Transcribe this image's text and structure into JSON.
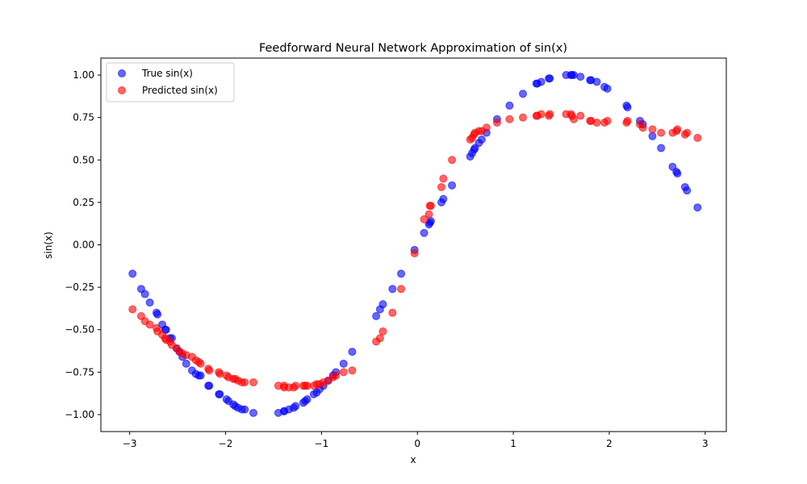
{
  "chart_data": {
    "type": "scatter",
    "title": "Feedforward Neural Network Approximation of sin(x)",
    "xlabel": "x",
    "ylabel": "sin(x)",
    "xlim": [
      -3.3,
      3.22
    ],
    "ylim": [
      -1.1,
      1.1
    ],
    "xticks": [
      -3,
      -2,
      -1,
      0,
      1,
      2,
      3
    ],
    "yticks": [
      -1.0,
      -0.75,
      -0.5,
      -0.25,
      0.0,
      0.25,
      0.5,
      0.75,
      1.0
    ],
    "xtick_labels": [
      "−3",
      "−2",
      "−1",
      "0",
      "1",
      "2",
      "3"
    ],
    "ytick_labels": [
      "−1.00",
      "−0.75",
      "−0.50",
      "−0.25",
      "0.00",
      "0.25",
      "0.50",
      "0.75",
      "1.00"
    ],
    "grid": false,
    "legend_position": "upper-left",
    "series": [
      {
        "name": "True sin(x)",
        "color": "#0000ff",
        "x": [
          -2.97,
          -2.88,
          -2.84,
          -2.79,
          -2.72,
          -2.71,
          -2.66,
          -2.63,
          -2.62,
          -2.58,
          -2.56,
          -2.51,
          -2.48,
          -2.45,
          -2.41,
          -2.35,
          -2.31,
          -2.28,
          -2.26,
          -2.18,
          -2.17,
          -2.07,
          -2.06,
          -1.99,
          -1.97,
          -1.92,
          -1.9,
          -1.87,
          -1.83,
          -1.8,
          -1.71,
          -1.45,
          -1.39,
          -1.39,
          -1.34,
          -1.29,
          -1.27,
          -1.19,
          -1.17,
          -1.15,
          -1.08,
          -1.05,
          -1.02,
          -0.98,
          -0.93,
          -0.88,
          -0.85,
          -0.77,
          -0.68,
          -0.43,
          -0.39,
          -0.36,
          -0.26,
          -0.17,
          -0.03,
          0.07,
          0.12,
          0.13,
          0.14,
          0.25,
          0.27,
          0.36,
          0.55,
          0.57,
          0.59,
          0.6,
          0.64,
          0.67,
          0.72,
          0.83,
          0.96,
          1.1,
          1.24,
          1.25,
          1.29,
          1.37,
          1.38,
          1.55,
          1.6,
          1.61,
          1.63,
          1.7,
          1.8,
          1.81,
          1.87,
          1.95,
          1.98,
          2.18,
          2.19,
          2.32,
          2.35,
          2.45,
          2.54,
          2.66,
          2.7,
          2.71,
          2.79,
          2.81,
          2.92
        ],
        "y": [
          -0.17,
          -0.26,
          -0.29,
          -0.34,
          -0.4,
          -0.41,
          -0.47,
          -0.5,
          -0.5,
          -0.55,
          -0.55,
          -0.61,
          -0.63,
          -0.66,
          -0.7,
          -0.74,
          -0.76,
          -0.77,
          -0.77,
          -0.83,
          -0.83,
          -0.88,
          -0.88,
          -0.91,
          -0.92,
          -0.94,
          -0.95,
          -0.96,
          -0.97,
          -0.97,
          -0.99,
          -0.99,
          -0.98,
          -0.98,
          -0.97,
          -0.96,
          -0.95,
          -0.93,
          -0.92,
          -0.91,
          -0.88,
          -0.87,
          -0.85,
          -0.83,
          -0.8,
          -0.77,
          -0.75,
          -0.7,
          -0.63,
          -0.42,
          -0.38,
          -0.35,
          -0.26,
          -0.17,
          -0.03,
          0.07,
          0.12,
          0.13,
          0.14,
          0.25,
          0.27,
          0.35,
          0.52,
          0.54,
          0.56,
          0.57,
          0.6,
          0.62,
          0.66,
          0.74,
          0.82,
          0.89,
          0.95,
          0.95,
          0.96,
          0.98,
          0.98,
          1.0,
          1.0,
          1.0,
          1.0,
          0.99,
          0.97,
          0.97,
          0.96,
          0.93,
          0.92,
          0.82,
          0.81,
          0.73,
          0.71,
          0.64,
          0.57,
          0.46,
          0.43,
          0.42,
          0.34,
          0.32,
          0.22
        ]
      },
      {
        "name": "Predicted sin(x)",
        "color": "#ff0000",
        "x": [
          -2.97,
          -2.88,
          -2.84,
          -2.79,
          -2.72,
          -2.71,
          -2.66,
          -2.63,
          -2.62,
          -2.58,
          -2.56,
          -2.51,
          -2.48,
          -2.45,
          -2.41,
          -2.35,
          -2.31,
          -2.28,
          -2.26,
          -2.18,
          -2.17,
          -2.07,
          -2.06,
          -1.99,
          -1.97,
          -1.92,
          -1.9,
          -1.87,
          -1.83,
          -1.8,
          -1.71,
          -1.45,
          -1.39,
          -1.39,
          -1.34,
          -1.29,
          -1.27,
          -1.19,
          -1.17,
          -1.15,
          -1.08,
          -1.05,
          -1.02,
          -0.98,
          -0.93,
          -0.88,
          -0.85,
          -0.77,
          -0.68,
          -0.43,
          -0.39,
          -0.36,
          -0.26,
          -0.17,
          -0.03,
          0.07,
          0.12,
          0.13,
          0.14,
          0.25,
          0.27,
          0.36,
          0.55,
          0.57,
          0.59,
          0.6,
          0.64,
          0.67,
          0.72,
          0.83,
          0.96,
          1.1,
          1.24,
          1.25,
          1.29,
          1.37,
          1.38,
          1.55,
          1.6,
          1.61,
          1.63,
          1.7,
          1.8,
          1.81,
          1.87,
          1.95,
          1.98,
          2.18,
          2.19,
          2.32,
          2.35,
          2.45,
          2.54,
          2.66,
          2.7,
          2.71,
          2.79,
          2.81,
          2.92
        ],
        "y": [
          -0.38,
          -0.42,
          -0.45,
          -0.47,
          -0.49,
          -0.51,
          -0.53,
          -0.55,
          -0.56,
          -0.57,
          -0.59,
          -0.61,
          -0.63,
          -0.64,
          -0.65,
          -0.66,
          -0.68,
          -0.69,
          -0.7,
          -0.73,
          -0.74,
          -0.75,
          -0.76,
          -0.77,
          -0.78,
          -0.79,
          -0.79,
          -0.8,
          -0.81,
          -0.81,
          -0.81,
          -0.83,
          -0.84,
          -0.83,
          -0.84,
          -0.84,
          -0.83,
          -0.83,
          -0.83,
          -0.83,
          -0.83,
          -0.82,
          -0.82,
          -0.81,
          -0.8,
          -0.78,
          -0.77,
          -0.75,
          -0.74,
          -0.57,
          -0.55,
          -0.51,
          -0.4,
          -0.26,
          -0.05,
          0.15,
          0.18,
          0.23,
          0.23,
          0.34,
          0.39,
          0.5,
          0.62,
          0.63,
          0.65,
          0.66,
          0.67,
          0.67,
          0.69,
          0.72,
          0.74,
          0.75,
          0.76,
          0.76,
          0.77,
          0.76,
          0.77,
          0.77,
          0.77,
          0.76,
          0.74,
          0.76,
          0.73,
          0.73,
          0.72,
          0.72,
          0.73,
          0.72,
          0.73,
          0.71,
          0.69,
          0.68,
          0.66,
          0.66,
          0.67,
          0.68,
          0.65,
          0.66,
          0.63
        ]
      }
    ]
  }
}
